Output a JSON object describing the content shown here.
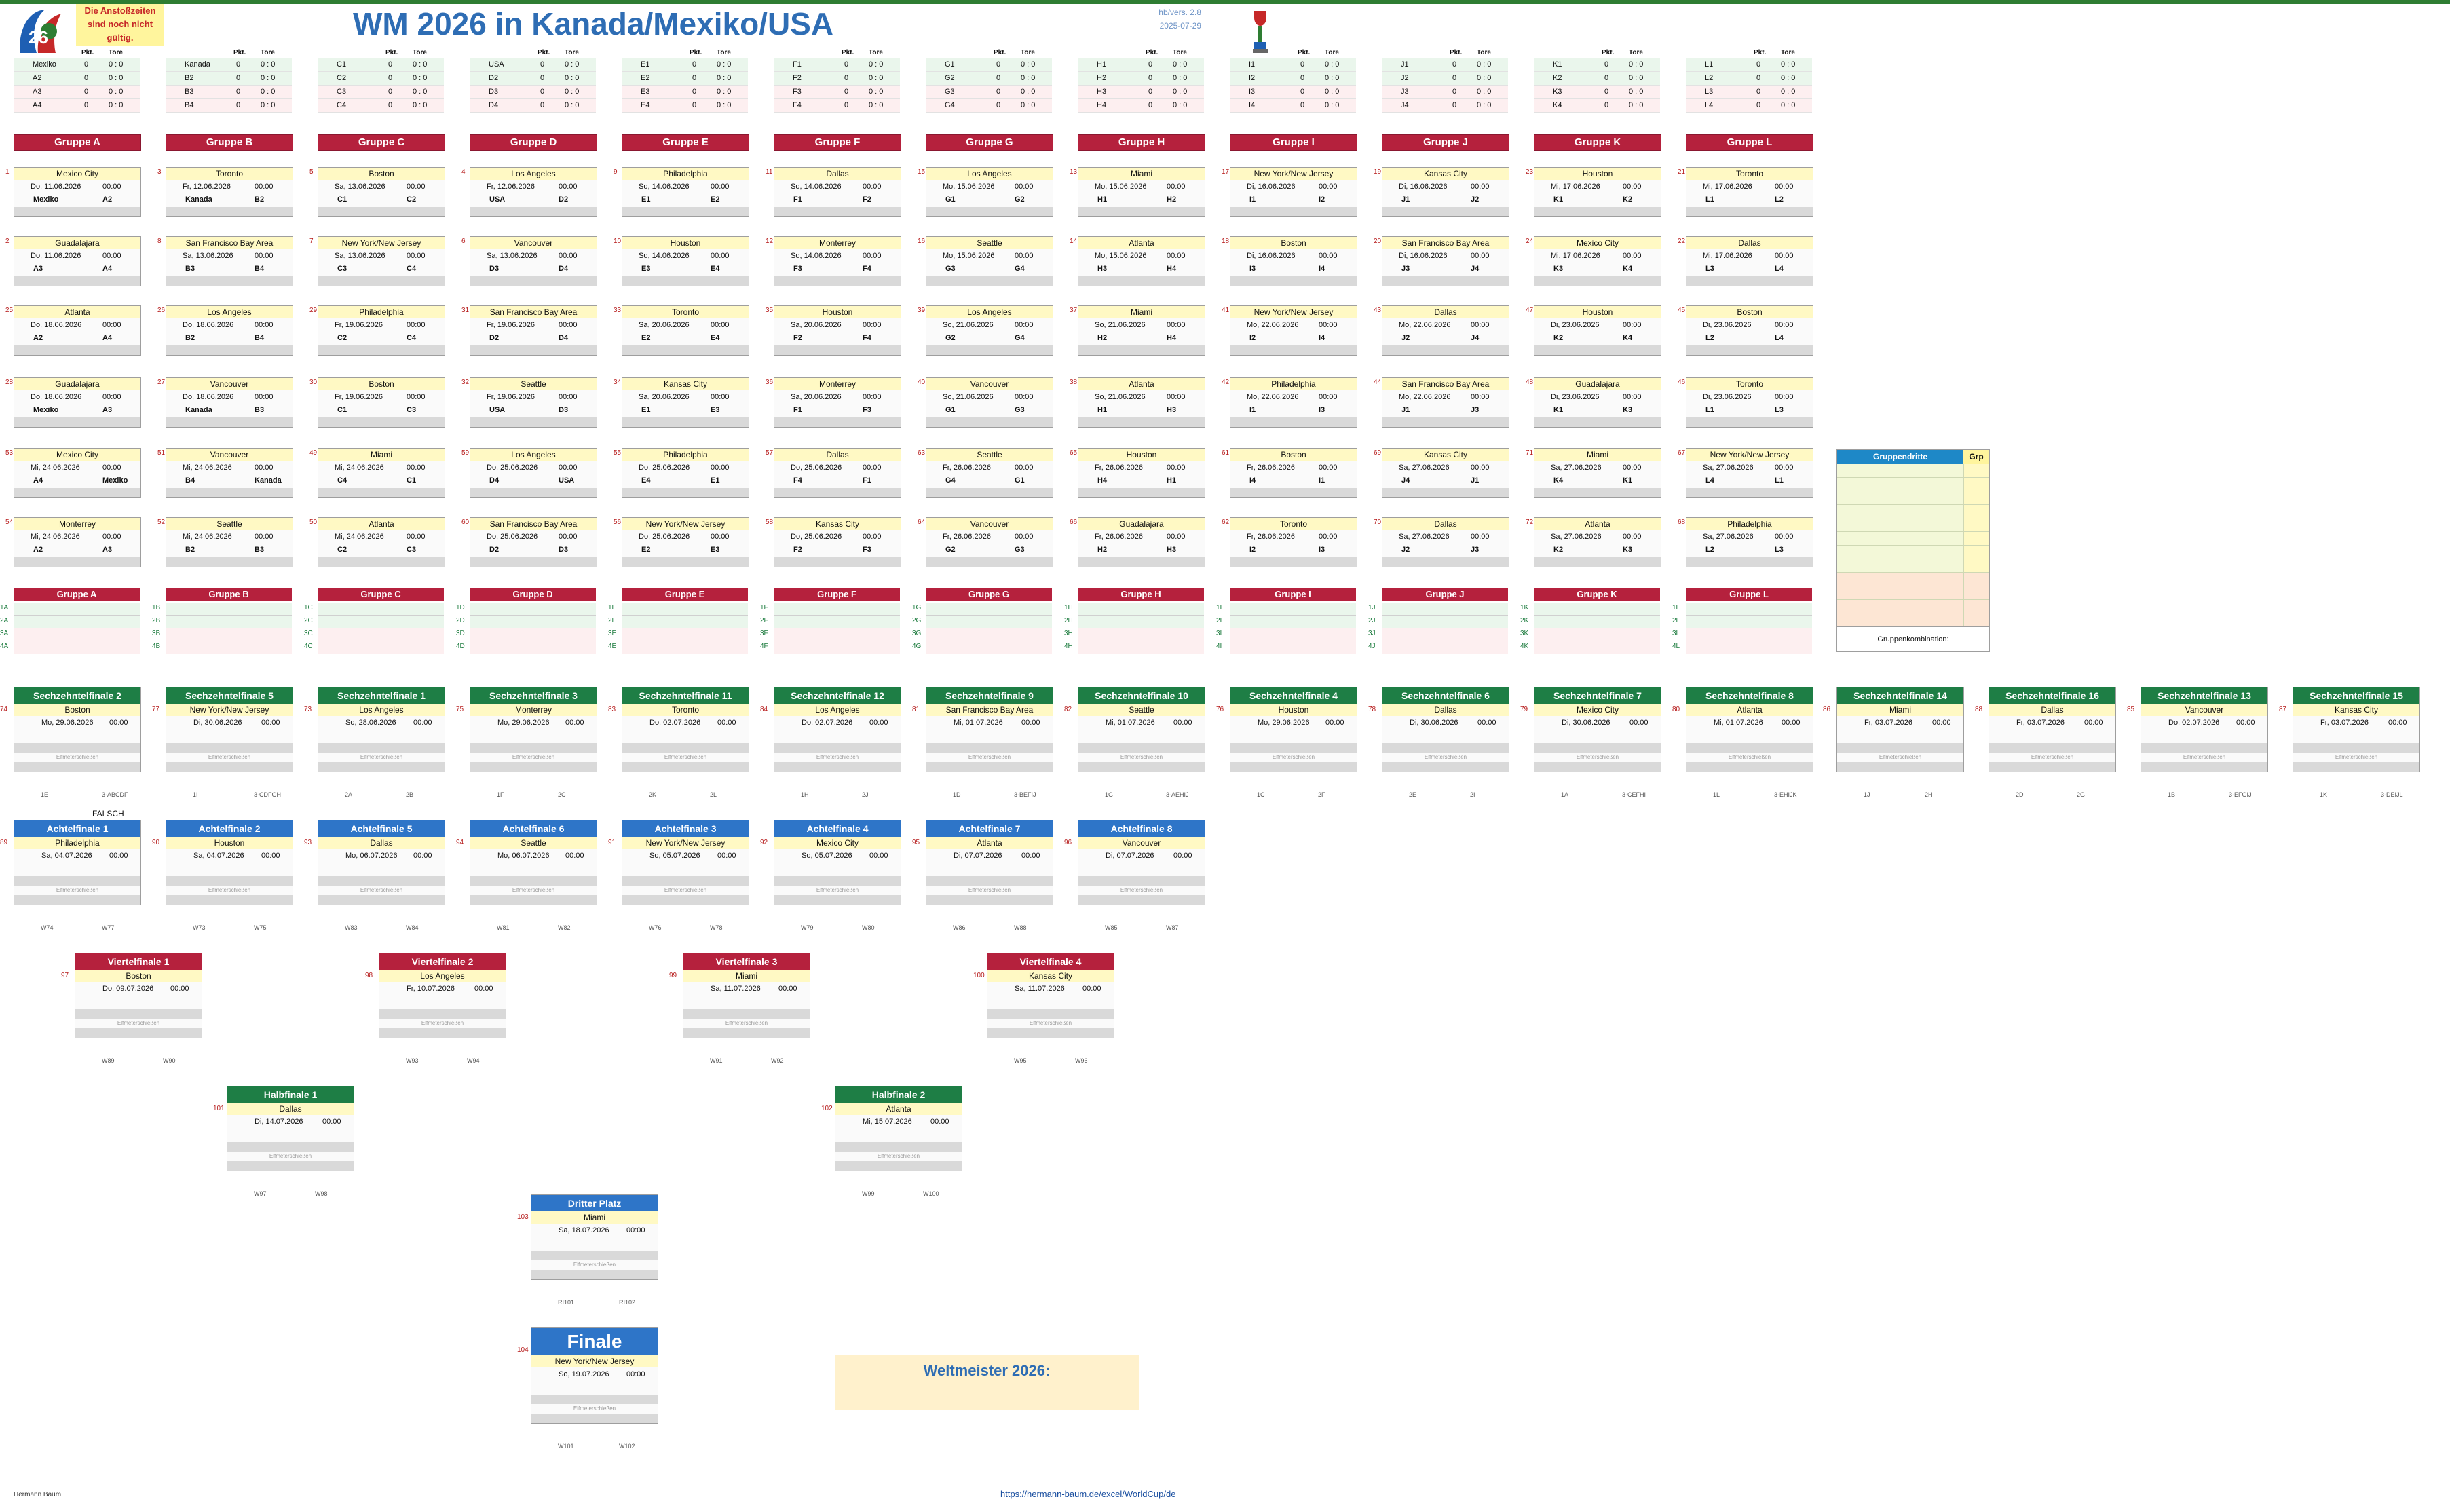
{
  "header": {
    "title": "WM 2026 in Kanada/Mexiko/USA",
    "note": "Die Anstoßzeiten sind noch nicht gültig.",
    "version": "hb/vers. 2.8",
    "date": "2025-07-29"
  },
  "standings_labels": {
    "pkt": "Pkt.",
    "tore": "Tore"
  },
  "standings": [
    {
      "teams": [
        "Mexiko",
        "A2",
        "A3",
        "A4"
      ]
    },
    {
      "teams": [
        "Kanada",
        "B2",
        "B3",
        "B4"
      ]
    },
    {
      "teams": [
        "C1",
        "C2",
        "C3",
        "C4"
      ]
    },
    {
      "teams": [
        "USA",
        "D2",
        "D3",
        "D4"
      ]
    },
    {
      "teams": [
        "E1",
        "E2",
        "E3",
        "E4"
      ]
    },
    {
      "teams": [
        "F1",
        "F2",
        "F3",
        "F4"
      ]
    },
    {
      "teams": [
        "G1",
        "G2",
        "G3",
        "G4"
      ]
    },
    {
      "teams": [
        "H1",
        "H2",
        "H3",
        "H4"
      ]
    },
    {
      "teams": [
        "I1",
        "I2",
        "I3",
        "I4"
      ]
    },
    {
      "teams": [
        "J1",
        "J2",
        "J3",
        "J4"
      ]
    },
    {
      "teams": [
        "K1",
        "K2",
        "K3",
        "K4"
      ]
    },
    {
      "teams": [
        "L1",
        "L2",
        "L3",
        "L4"
      ]
    }
  ],
  "standing_values": {
    "pts": "0",
    "goals": "0 : 0"
  },
  "groups": [
    "Gruppe A",
    "Gruppe B",
    "Gruppe C",
    "Gruppe D",
    "Gruppe E",
    "Gruppe F",
    "Gruppe G",
    "Gruppe H",
    "Gruppe I",
    "Gruppe J",
    "Gruppe K",
    "Gruppe L"
  ],
  "time": "00:00",
  "group_matches": [
    [
      {
        "n": "1",
        "v": "Mexico City",
        "d": "Do, 11.06.2026",
        "h": "Mexiko",
        "a": "A2"
      },
      {
        "n": "3",
        "v": "Toronto",
        "d": "Fr, 12.06.2026",
        "h": "Kanada",
        "a": "B2"
      },
      {
        "n": "5",
        "v": "Boston",
        "d": "Sa, 13.06.2026",
        "h": "C1",
        "a": "C2"
      },
      {
        "n": "4",
        "v": "Los Angeles",
        "d": "Fr, 12.06.2026",
        "h": "USA",
        "a": "D2"
      },
      {
        "n": "9",
        "v": "Philadelphia",
        "d": "So, 14.06.2026",
        "h": "E1",
        "a": "E2"
      },
      {
        "n": "11",
        "v": "Dallas",
        "d": "So, 14.06.2026",
        "h": "F1",
        "a": "F2"
      },
      {
        "n": "15",
        "v": "Los Angeles",
        "d": "Mo, 15.06.2026",
        "h": "G1",
        "a": "G2"
      },
      {
        "n": "13",
        "v": "Miami",
        "d": "Mo, 15.06.2026",
        "h": "H1",
        "a": "H2"
      },
      {
        "n": "17",
        "v": "New York/New Jersey",
        "d": "Di, 16.06.2026",
        "h": "I1",
        "a": "I2"
      },
      {
        "n": "19",
        "v": "Kansas City",
        "d": "Di, 16.06.2026",
        "h": "J1",
        "a": "J2"
      },
      {
        "n": "23",
        "v": "Houston",
        "d": "Mi, 17.06.2026",
        "h": "K1",
        "a": "K2"
      },
      {
        "n": "21",
        "v": "Toronto",
        "d": "Mi, 17.06.2026",
        "h": "L1",
        "a": "L2"
      }
    ],
    [
      {
        "n": "2",
        "v": "Guadalajara",
        "d": "Do, 11.06.2026",
        "h": "A3",
        "a": "A4"
      },
      {
        "n": "8",
        "v": "San Francisco Bay Area",
        "d": "Sa, 13.06.2026",
        "h": "B3",
        "a": "B4"
      },
      {
        "n": "7",
        "v": "New York/New Jersey",
        "d": "Sa, 13.06.2026",
        "h": "C3",
        "a": "C4"
      },
      {
        "n": "6",
        "v": "Vancouver",
        "d": "Sa, 13.06.2026",
        "h": "D3",
        "a": "D4"
      },
      {
        "n": "10",
        "v": "Houston",
        "d": "So, 14.06.2026",
        "h": "E3",
        "a": "E4"
      },
      {
        "n": "12",
        "v": "Monterrey",
        "d": "So, 14.06.2026",
        "h": "F3",
        "a": "F4"
      },
      {
        "n": "16",
        "v": "Seattle",
        "d": "Mo, 15.06.2026",
        "h": "G3",
        "a": "G4"
      },
      {
        "n": "14",
        "v": "Atlanta",
        "d": "Mo, 15.06.2026",
        "h": "H3",
        "a": "H4"
      },
      {
        "n": "18",
        "v": "Boston",
        "d": "Di, 16.06.2026",
        "h": "I3",
        "a": "I4"
      },
      {
        "n": "20",
        "v": "San Francisco Bay Area",
        "d": "Di, 16.06.2026",
        "h": "J3",
        "a": "J4"
      },
      {
        "n": "24",
        "v": "Mexico City",
        "d": "Mi, 17.06.2026",
        "h": "K3",
        "a": "K4"
      },
      {
        "n": "22",
        "v": "Dallas",
        "d": "Mi, 17.06.2026",
        "h": "L3",
        "a": "L4"
      }
    ],
    [
      {
        "n": "25",
        "v": "Atlanta",
        "d": "Do, 18.06.2026",
        "h": "A2",
        "a": "A4"
      },
      {
        "n": "26",
        "v": "Los Angeles",
        "d": "Do, 18.06.2026",
        "h": "B2",
        "a": "B4"
      },
      {
        "n": "29",
        "v": "Philadelphia",
        "d": "Fr, 19.06.2026",
        "h": "C2",
        "a": "C4"
      },
      {
        "n": "31",
        "v": "San Francisco Bay Area",
        "d": "Fr, 19.06.2026",
        "h": "D2",
        "a": "D4"
      },
      {
        "n": "33",
        "v": "Toronto",
        "d": "Sa, 20.06.2026",
        "h": "E2",
        "a": "E4"
      },
      {
        "n": "35",
        "v": "Houston",
        "d": "Sa, 20.06.2026",
        "h": "F2",
        "a": "F4"
      },
      {
        "n": "39",
        "v": "Los Angeles",
        "d": "So, 21.06.2026",
        "h": "G2",
        "a": "G4"
      },
      {
        "n": "37",
        "v": "Miami",
        "d": "So, 21.06.2026",
        "h": "H2",
        "a": "H4"
      },
      {
        "n": "41",
        "v": "New York/New Jersey",
        "d": "Mo, 22.06.2026",
        "h": "I2",
        "a": "I4"
      },
      {
        "n": "43",
        "v": "Dallas",
        "d": "Mo, 22.06.2026",
        "h": "J2",
        "a": "J4"
      },
      {
        "n": "47",
        "v": "Houston",
        "d": "Di, 23.06.2026",
        "h": "K2",
        "a": "K4"
      },
      {
        "n": "45",
        "v": "Boston",
        "d": "Di, 23.06.2026",
        "h": "L2",
        "a": "L4"
      }
    ],
    [
      {
        "n": "28",
        "v": "Guadalajara",
        "d": "Do, 18.06.2026",
        "h": "Mexiko",
        "a": "A3"
      },
      {
        "n": "27",
        "v": "Vancouver",
        "d": "Do, 18.06.2026",
        "h": "Kanada",
        "a": "B3"
      },
      {
        "n": "30",
        "v": "Boston",
        "d": "Fr, 19.06.2026",
        "h": "C1",
        "a": "C3"
      },
      {
        "n": "32",
        "v": "Seattle",
        "d": "Fr, 19.06.2026",
        "h": "USA",
        "a": "D3"
      },
      {
        "n": "34",
        "v": "Kansas City",
        "d": "Sa, 20.06.2026",
        "h": "E1",
        "a": "E3"
      },
      {
        "n": "36",
        "v": "Monterrey",
        "d": "Sa, 20.06.2026",
        "h": "F1",
        "a": "F3"
      },
      {
        "n": "40",
        "v": "Vancouver",
        "d": "So, 21.06.2026",
        "h": "G1",
        "a": "G3"
      },
      {
        "n": "38",
        "v": "Atlanta",
        "d": "So, 21.06.2026",
        "h": "H1",
        "a": "H3"
      },
      {
        "n": "42",
        "v": "Philadelphia",
        "d": "Mo, 22.06.2026",
        "h": "I1",
        "a": "I3"
      },
      {
        "n": "44",
        "v": "San Francisco Bay Area",
        "d": "Mo, 22.06.2026",
        "h": "J1",
        "a": "J3"
      },
      {
        "n": "48",
        "v": "Guadalajara",
        "d": "Di, 23.06.2026",
        "h": "K1",
        "a": "K3"
      },
      {
        "n": "46",
        "v": "Toronto",
        "d": "Di, 23.06.2026",
        "h": "L1",
        "a": "L3"
      }
    ],
    [
      {
        "n": "53",
        "v": "Mexico City",
        "d": "Mi, 24.06.2026",
        "h": "A4",
        "a": "Mexiko"
      },
      {
        "n": "51",
        "v": "Vancouver",
        "d": "Mi, 24.06.2026",
        "h": "B4",
        "a": "Kanada"
      },
      {
        "n": "49",
        "v": "Miami",
        "d": "Mi, 24.06.2026",
        "h": "C4",
        "a": "C1"
      },
      {
        "n": "59",
        "v": "Los Angeles",
        "d": "Do, 25.06.2026",
        "h": "D4",
        "a": "USA"
      },
      {
        "n": "55",
        "v": "Philadelphia",
        "d": "Do, 25.06.2026",
        "h": "E4",
        "a": "E1"
      },
      {
        "n": "57",
        "v": "Dallas",
        "d": "Do, 25.06.2026",
        "h": "F4",
        "a": "F1"
      },
      {
        "n": "63",
        "v": "Seattle",
        "d": "Fr, 26.06.2026",
        "h": "G4",
        "a": "G1"
      },
      {
        "n": "65",
        "v": "Houston",
        "d": "Fr, 26.06.2026",
        "h": "H4",
        "a": "H1"
      },
      {
        "n": "61",
        "v": "Boston",
        "d": "Fr, 26.06.2026",
        "h": "I4",
        "a": "I1"
      },
      {
        "n": "69",
        "v": "Kansas City",
        "d": "Sa, 27.06.2026",
        "h": "J4",
        "a": "J1"
      },
      {
        "n": "71",
        "v": "Miami",
        "d": "Sa, 27.06.2026",
        "h": "K4",
        "a": "K1"
      },
      {
        "n": "67",
        "v": "New York/New Jersey",
        "d": "Sa, 27.06.2026",
        "h": "L4",
        "a": "L1"
      }
    ],
    [
      {
        "n": "54",
        "v": "Monterrey",
        "d": "Mi, 24.06.2026",
        "h": "A2",
        "a": "A3"
      },
      {
        "n": "52",
        "v": "Seattle",
        "d": "Mi, 24.06.2026",
        "h": "B2",
        "a": "B3"
      },
      {
        "n": "50",
        "v": "Atlanta",
        "d": "Mi, 24.06.2026",
        "h": "C2",
        "a": "C3"
      },
      {
        "n": "60",
        "v": "San Francisco Bay Area",
        "d": "Do, 25.06.2026",
        "h": "D2",
        "a": "D3"
      },
      {
        "n": "56",
        "v": "New York/New Jersey",
        "d": "Do, 25.06.2026",
        "h": "E2",
        "a": "E3"
      },
      {
        "n": "58",
        "v": "Kansas City",
        "d": "Do, 25.06.2026",
        "h": "F2",
        "a": "F3"
      },
      {
        "n": "64",
        "v": "Vancouver",
        "d": "Fr, 26.06.2026",
        "h": "G2",
        "a": "G3"
      },
      {
        "n": "66",
        "v": "Guadalajara",
        "d": "Fr, 26.06.2026",
        "h": "H2",
        "a": "H3"
      },
      {
        "n": "62",
        "v": "Toronto",
        "d": "Fr, 26.06.2026",
        "h": "I2",
        "a": "I3"
      },
      {
        "n": "70",
        "v": "Dallas",
        "d": "Sa, 27.06.2026",
        "h": "J2",
        "a": "J3"
      },
      {
        "n": "72",
        "v": "Atlanta",
        "d": "Sa, 27.06.2026",
        "h": "K2",
        "a": "K3"
      },
      {
        "n": "68",
        "v": "Philadelphia",
        "d": "Sa, 27.06.2026",
        "h": "L2",
        "a": "L3"
      }
    ]
  ],
  "final_groups": [
    {
      "name": "Gruppe A",
      "letter": "A"
    },
    {
      "name": "Gruppe B",
      "letter": "B"
    },
    {
      "name": "Gruppe C",
      "letter": "C"
    },
    {
      "name": "Gruppe D",
      "letter": "D"
    },
    {
      "name": "Gruppe E",
      "letter": "E"
    },
    {
      "name": "Gruppe F",
      "letter": "F"
    },
    {
      "name": "Gruppe G",
      "letter": "G"
    },
    {
      "name": "Gruppe H",
      "letter": "H"
    },
    {
      "name": "Gruppe I",
      "letter": "I"
    },
    {
      "name": "Gruppe J",
      "letter": "J"
    },
    {
      "name": "Gruppe K",
      "letter": "K"
    },
    {
      "name": "Gruppe L",
      "letter": "L"
    }
  ],
  "thirds": {
    "title": "Gruppendritte",
    "grp": "Grp",
    "combo": "Gruppenkombination:"
  },
  "pens": "Elfmeterschießen",
  "r32": [
    {
      "t": "Sechzehntelfinale 2",
      "n": "74",
      "v": "Boston",
      "d": "Mo, 29.06.2026",
      "f1": "1E",
      "f2": "3-ABCDF"
    },
    {
      "t": "Sechzehntelfinale 5",
      "n": "77",
      "v": "New York/New Jersey",
      "d": "Di, 30.06.2026",
      "f1": "1I",
      "f2": "3-CDFGH"
    },
    {
      "t": "Sechzehntelfinale 1",
      "n": "73",
      "v": "Los Angeles",
      "d": "So, 28.06.2026",
      "f1": "2A",
      "f2": "2B"
    },
    {
      "t": "Sechzehntelfinale 3",
      "n": "75",
      "v": "Monterrey",
      "d": "Mo, 29.06.2026",
      "f1": "1F",
      "f2": "2C"
    },
    {
      "t": "Sechzehntelfinale 11",
      "n": "83",
      "v": "Toronto",
      "d": "Do, 02.07.2026",
      "f1": "2K",
      "f2": "2L"
    },
    {
      "t": "Sechzehntelfinale 12",
      "n": "84",
      "v": "Los Angeles",
      "d": "Do, 02.07.2026",
      "f1": "1H",
      "f2": "2J"
    },
    {
      "t": "Sechzehntelfinale 9",
      "n": "81",
      "v": "San Francisco Bay Area",
      "d": "Mi, 01.07.2026",
      "f1": "1D",
      "f2": "3-BEFIJ"
    },
    {
      "t": "Sechzehntelfinale 10",
      "n": "82",
      "v": "Seattle",
      "d": "Mi, 01.07.2026",
      "f1": "1G",
      "f2": "3-AEHIJ"
    },
    {
      "t": "Sechzehntelfinale 4",
      "n": "76",
      "v": "Houston",
      "d": "Mo, 29.06.2026",
      "f1": "1C",
      "f2": "2F"
    },
    {
      "t": "Sechzehntelfinale 6",
      "n": "78",
      "v": "Dallas",
      "d": "Di, 30.06.2026",
      "f1": "2E",
      "f2": "2I"
    },
    {
      "t": "Sechzehntelfinale 7",
      "n": "79",
      "v": "Mexico City",
      "d": "Di, 30.06.2026",
      "f1": "1A",
      "f2": "3-CEFHI"
    },
    {
      "t": "Sechzehntelfinale 8",
      "n": "80",
      "v": "Atlanta",
      "d": "Mi, 01.07.2026",
      "f1": "1L",
      "f2": "3-EHIJK"
    },
    {
      "t": "Sechzehntelfinale 14",
      "n": "86",
      "v": "Miami",
      "d": "Fr, 03.07.2026",
      "f1": "1J",
      "f2": "2H"
    },
    {
      "t": "Sechzehntelfinale 16",
      "n": "88",
      "v": "Dallas",
      "d": "Fr, 03.07.2026",
      "f1": "2D",
      "f2": "2G"
    },
    {
      "t": "Sechzehntelfinale 13",
      "n": "85",
      "v": "Vancouver",
      "d": "Do, 02.07.2026",
      "f1": "1B",
      "f2": "3-EFGIJ"
    },
    {
      "t": "Sechzehntelfinale 15",
      "n": "87",
      "v": "Kansas City",
      "d": "Fr, 03.07.2026",
      "f1": "1K",
      "f2": "3-DEIJL"
    }
  ],
  "falsch": "FALSCH",
  "r16": [
    {
      "t": "Achtelfinale 1",
      "n": "89",
      "v": "Philadelphia",
      "d": "Sa, 04.07.2026",
      "f1": "W74",
      "f2": "W77"
    },
    {
      "t": "Achtelfinale 2",
      "n": "90",
      "v": "Houston",
      "d": "Sa, 04.07.2026",
      "f1": "W73",
      "f2": "W75"
    },
    {
      "t": "Achtelfinale 5",
      "n": "93",
      "v": "Dallas",
      "d": "Mo, 06.07.2026",
      "f1": "W83",
      "f2": "W84"
    },
    {
      "t": "Achtelfinale 6",
      "n": "94",
      "v": "Seattle",
      "d": "Mo, 06.07.2026",
      "f1": "W81",
      "f2": "W82"
    },
    {
      "t": "Achtelfinale 3",
      "n": "91",
      "v": "New York/New Jersey",
      "d": "So, 05.07.2026",
      "f1": "W76",
      "f2": "W78"
    },
    {
      "t": "Achtelfinale 4",
      "n": "92",
      "v": "Mexico City",
      "d": "So, 05.07.2026",
      "f1": "W79",
      "f2": "W80"
    },
    {
      "t": "Achtelfinale 7",
      "n": "95",
      "v": "Atlanta",
      "d": "Di, 07.07.2026",
      "f1": "W86",
      "f2": "W88"
    },
    {
      "t": "Achtelfinale 8",
      "n": "96",
      "v": "Vancouver",
      "d": "Di, 07.07.2026",
      "f1": "W85",
      "f2": "W87"
    }
  ],
  "qf": [
    {
      "t": "Viertelfinale 1",
      "n": "97",
      "v": "Boston",
      "d": "Do, 09.07.2026",
      "f1": "W89",
      "f2": "W90"
    },
    {
      "t": "Viertelfinale 2",
      "n": "98",
      "v": "Los Angeles",
      "d": "Fr, 10.07.2026",
      "f1": "W93",
      "f2": "W94"
    },
    {
      "t": "Viertelfinale 3",
      "n": "99",
      "v": "Miami",
      "d": "Sa, 11.07.2026",
      "f1": "W91",
      "f2": "W92"
    },
    {
      "t": "Viertelfinale 4",
      "n": "100",
      "v": "Kansas City",
      "d": "Sa, 11.07.2026",
      "f1": "W95",
      "f2": "W96"
    }
  ],
  "sf": [
    {
      "t": "Halbfinale 1",
      "n": "101",
      "v": "Dallas",
      "d": "Di, 14.07.2026",
      "f1": "W97",
      "f2": "W98"
    },
    {
      "t": "Halbfinale 2",
      "n": "102",
      "v": "Atlanta",
      "d": "Mi, 15.07.2026",
      "f1": "W99",
      "f2": "W100"
    }
  ],
  "third": {
    "t": "Dritter Platz",
    "n": "103",
    "v": "Miami",
    "d": "Sa, 18.07.2026",
    "f1": "RI101",
    "f2": "RI102"
  },
  "final": {
    "t": "Finale",
    "n": "104",
    "v": "New York/New Jersey",
    "d": "So, 19.07.2026",
    "f1": "W101",
    "f2": "W102"
  },
  "champion": "Weltmeister 2026:",
  "footer": {
    "author": "Hermann Baum",
    "url": "https://hermann-baum.de/excel/WorldCup/de"
  },
  "colors": {
    "group": "#b5213d",
    "r32": "#1e7e45",
    "r16": "#2e75c8",
    "thirds": "#1e88c7",
    "title": "#2e6db4"
  }
}
